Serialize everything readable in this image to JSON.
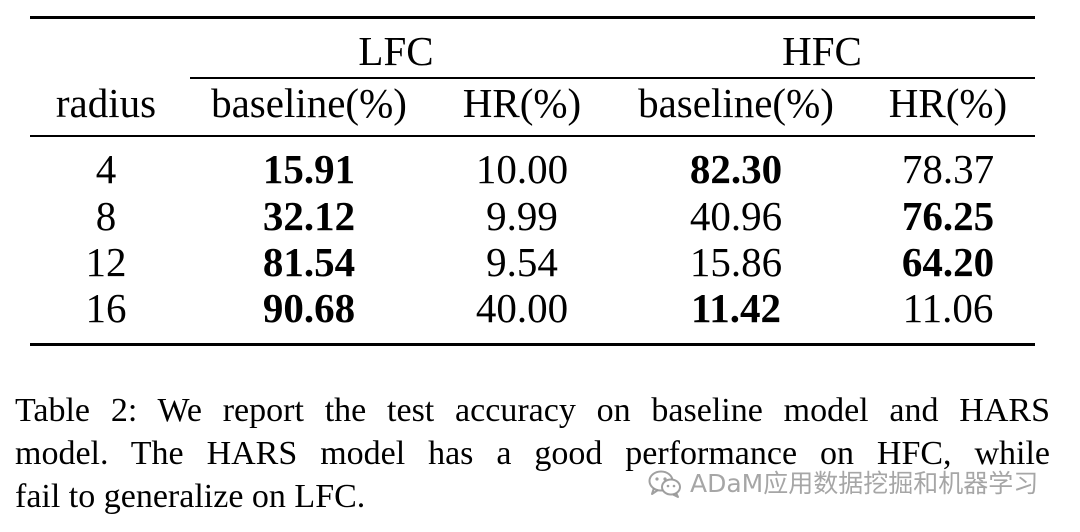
{
  "table": {
    "group_headers": [
      "LFC",
      "HFC"
    ],
    "column_headers": [
      "radius",
      "baseline(%)",
      "HR(%)",
      "baseline(%)",
      "HR(%)"
    ],
    "rows": [
      {
        "radius": "4",
        "lfc_baseline": "15.91",
        "lfc_hr": "10.00",
        "hfc_baseline": "82.30",
        "hfc_hr": "78.37",
        "bold": [
          "lfc_baseline",
          "hfc_baseline"
        ]
      },
      {
        "radius": "8",
        "lfc_baseline": "32.12",
        "lfc_hr": "9.99",
        "hfc_baseline": "40.96",
        "hfc_hr": "76.25",
        "bold": [
          "lfc_baseline",
          "hfc_hr"
        ]
      },
      {
        "radius": "12",
        "lfc_baseline": "81.54",
        "lfc_hr": "9.54",
        "hfc_baseline": "15.86",
        "hfc_hr": "64.20",
        "bold": [
          "lfc_baseline",
          "hfc_hr"
        ]
      },
      {
        "radius": "16",
        "lfc_baseline": "90.68",
        "lfc_hr": "40.00",
        "hfc_baseline": "11.42",
        "hfc_hr": "11.06",
        "bold": [
          "lfc_baseline",
          "hfc_baseline"
        ]
      }
    ]
  },
  "caption": {
    "line1": "Table 2: We report the test accuracy on baseline model and HARS",
    "line2": "model.  The HARS model has a good performance on HFC, while",
    "line3": "fail to generalize on LFC."
  },
  "watermark": {
    "text": "ADaM应用数据挖掘和机器学习",
    "icon": "wechat-icon"
  }
}
